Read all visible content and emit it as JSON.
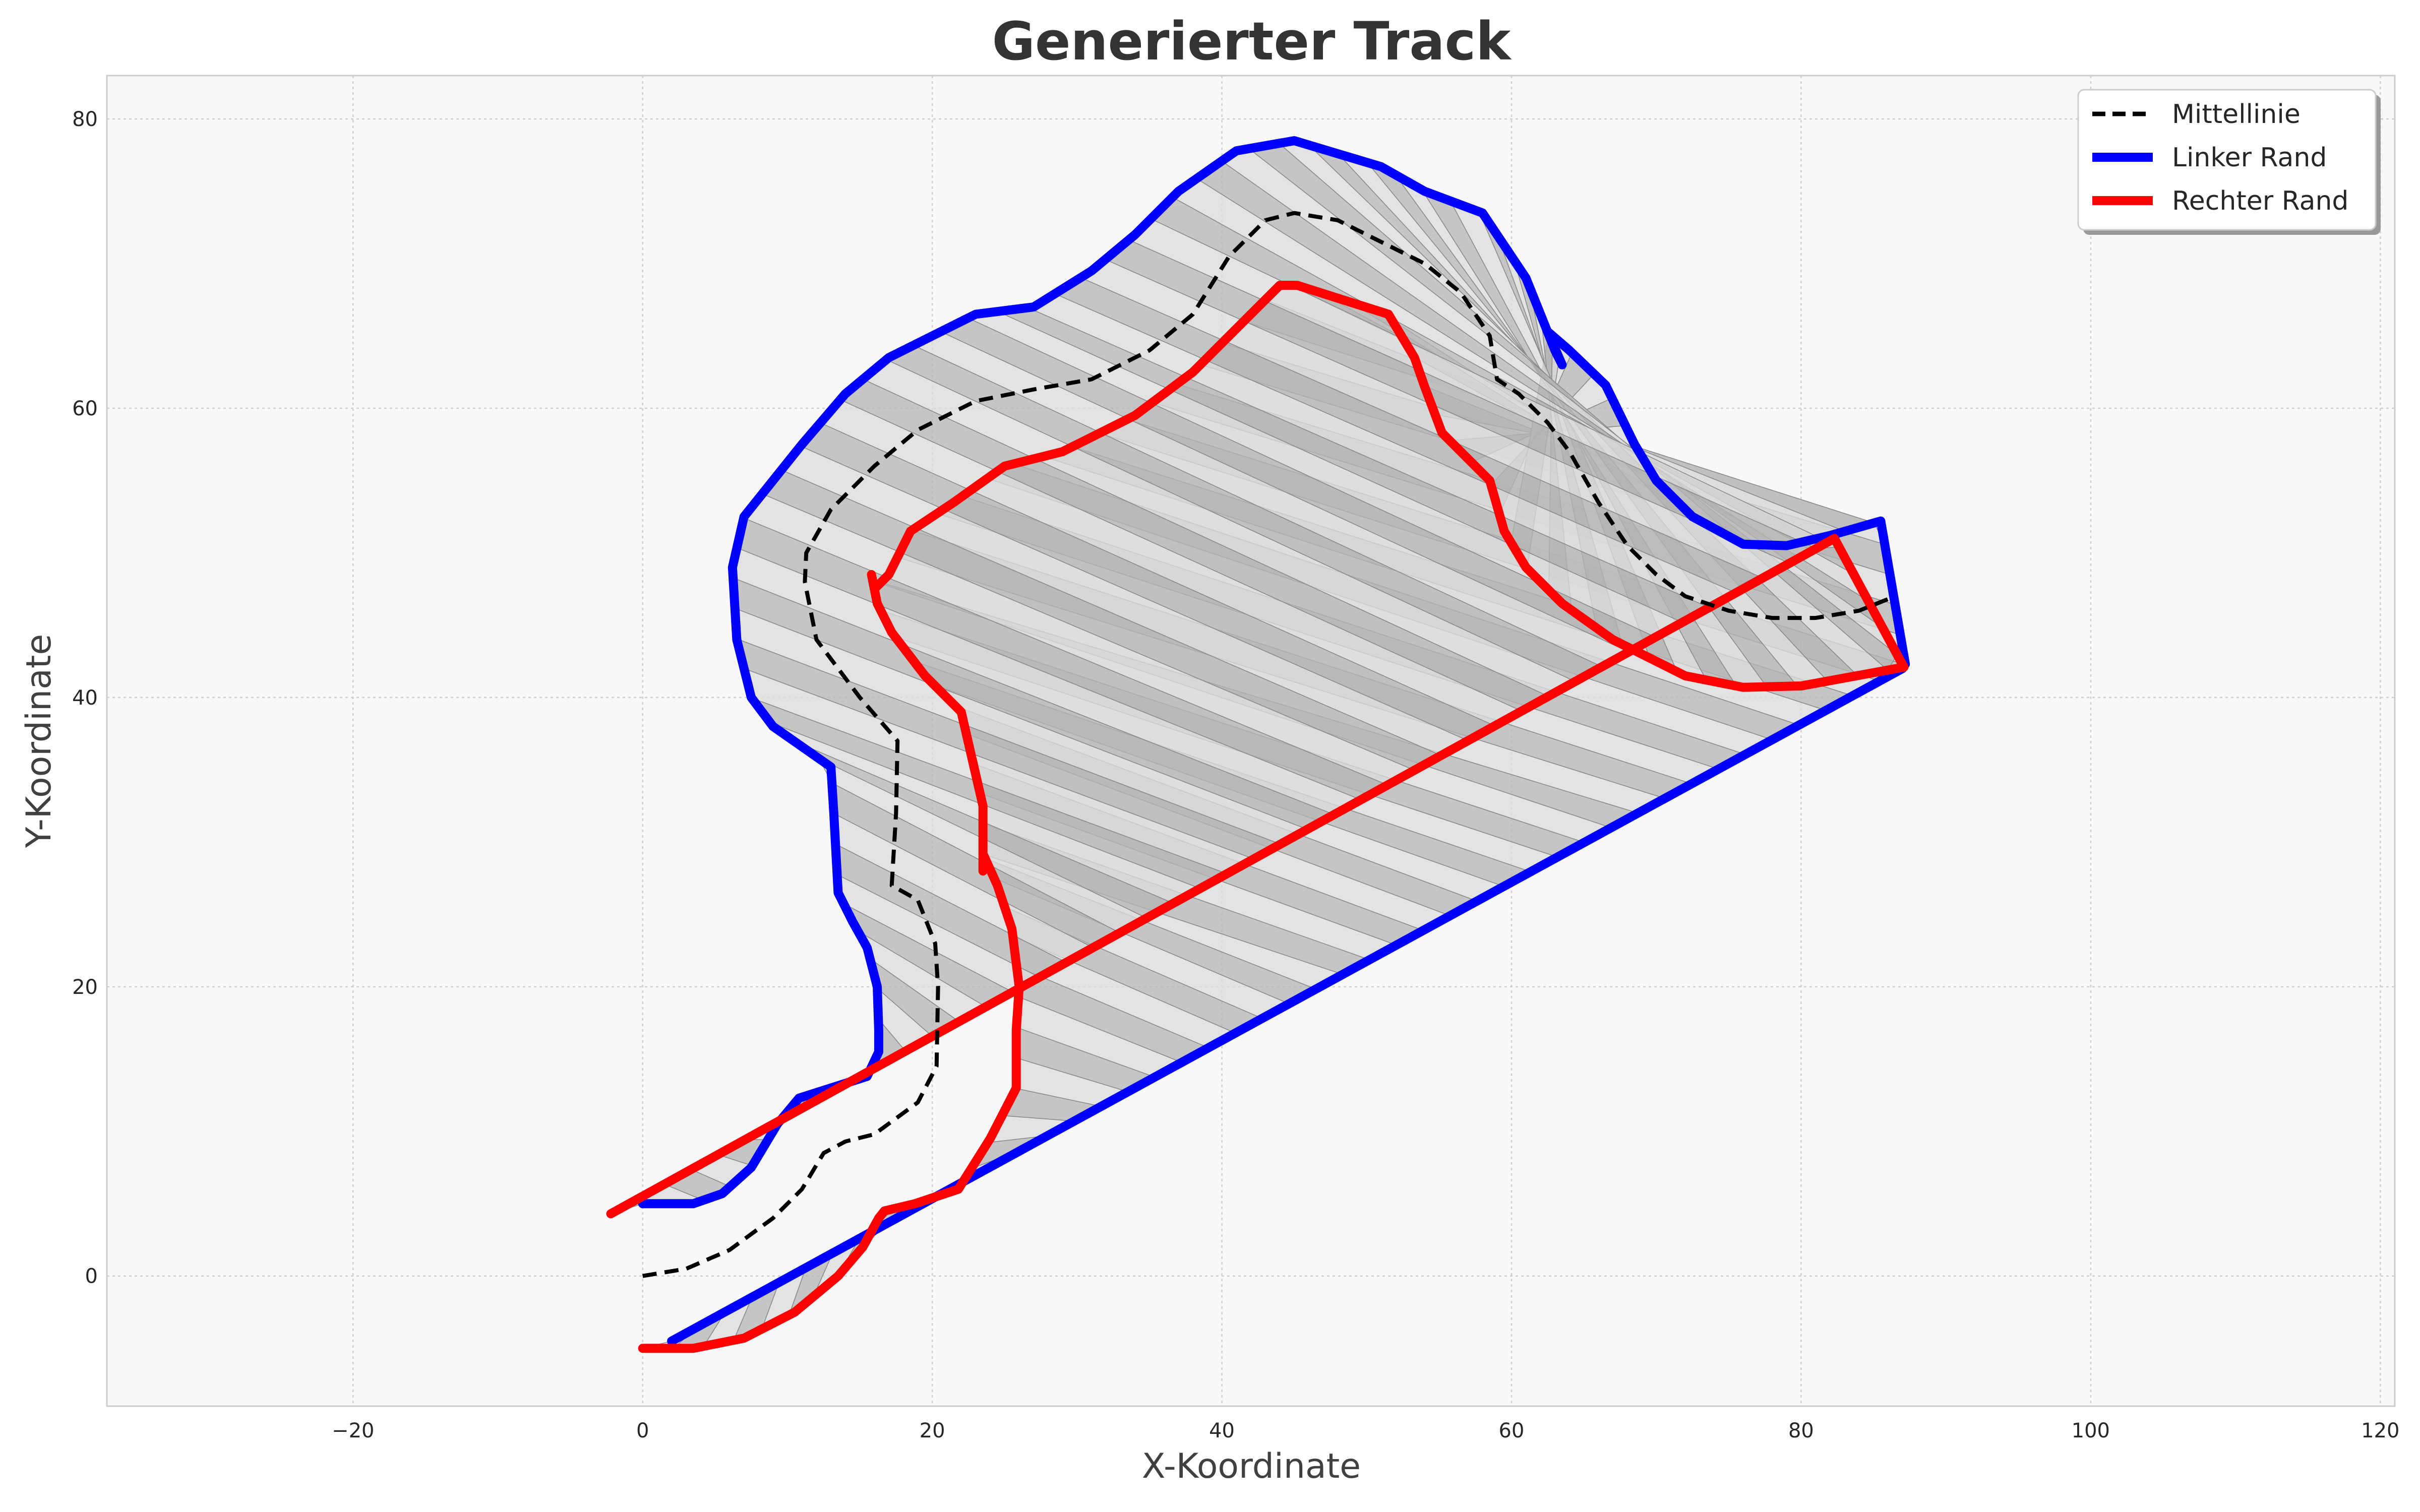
{
  "chart_data": {
    "type": "line",
    "title": "Generierter Track",
    "xlabel": "X-Koordinate",
    "ylabel": "Y-Koordinate",
    "xlim": [
      -37,
      121
    ],
    "ylim": [
      -9,
      83
    ],
    "xticks": [
      -20,
      0,
      20,
      40,
      60,
      80,
      100,
      120
    ],
    "yticks": [
      0,
      20,
      40,
      60,
      80
    ],
    "grid": true,
    "legend_position": "top-right",
    "colors": {
      "centerline": "#000000",
      "left_edge": "#0000ff",
      "right_edge": "#ff0000",
      "segment_light": "#dcdcdc",
      "segment_dark": "#b4b4b4",
      "plot_background": "#f8f8f8"
    },
    "series": [
      {
        "name": "Mittellinie",
        "style": "dashed",
        "x": [
          0,
          3,
          6,
          9,
          11,
          12.5,
          14,
          16,
          19,
          20.3,
          20.4,
          20.2,
          19,
          17.2,
          17.5,
          17.6,
          15,
          12,
          11.2,
          11.3,
          13,
          16,
          19,
          23,
          27,
          31,
          35,
          38,
          40.5,
          43,
          45,
          48,
          51,
          54,
          56.5,
          58.5,
          59,
          60.5,
          62.5,
          64,
          66,
          68,
          70,
          72,
          75,
          78,
          81,
          84,
          86.5
        ],
        "y": [
          0,
          0.5,
          1.8,
          4,
          6,
          8.5,
          9.3,
          9.8,
          12,
          14.5,
          20,
          23,
          26,
          27,
          32,
          37,
          40,
          44,
          48,
          50,
          53,
          56,
          58.5,
          60.5,
          61.3,
          62,
          64,
          66.5,
          70.5,
          73,
          73.5,
          73,
          71.5,
          70,
          68,
          65,
          62,
          61,
          59,
          57,
          53.5,
          50.5,
          48.5,
          47,
          46,
          45.5,
          45.5,
          46,
          47
        ]
      },
      {
        "name": "Linker Rand",
        "style": "solid",
        "x": [
          2,
          87,
          87.2,
          85.5,
          82,
          79,
          76,
          72.5,
          70,
          68.5,
          66.5,
          64,
          62.5,
          63.5,
          63,
          61,
          58,
          54,
          51,
          45,
          41,
          37,
          34,
          31,
          27,
          23,
          20,
          17,
          14,
          11,
          7,
          6.2,
          6.5,
          7.5,
          9,
          13,
          13.2,
          13.5,
          14.5,
          15.5,
          16.2,
          16.3,
          16.3,
          15.5,
          13,
          10.8,
          9.3,
          7.5,
          5.5,
          3.5,
          0
        ],
        "y": [
          -4.5,
          42,
          42.3,
          52.2,
          51.2,
          50.5,
          50.6,
          52.5,
          55,
          57.5,
          61.6,
          64,
          65.3,
          63,
          64,
          69,
          73.5,
          75,
          76.7,
          78.5,
          77.8,
          75,
          72,
          69.5,
          67,
          66.5,
          65,
          63.5,
          61,
          57.5,
          52.5,
          49,
          44,
          40,
          38,
          35.2,
          32,
          26.5,
          24.5,
          22.7,
          20,
          17,
          15.5,
          13.8,
          13,
          12.3,
          10.5,
          7.5,
          5.7,
          5,
          5
        ]
      },
      {
        "name": "Rechter Rand",
        "style": "solid",
        "x": [
          -2.2,
          82.3,
          87.1,
          80,
          76,
          72,
          67,
          63.5,
          61,
          59.5,
          58.5,
          55.2,
          54,
          53.3,
          51.5,
          45.2,
          44,
          41.5,
          38,
          34,
          29,
          25,
          21.5,
          18.5,
          17,
          16,
          15.8,
          16.2,
          17.2,
          19.5,
          22,
          23.5,
          23.5,
          23.5,
          24.5,
          25.5,
          26,
          25.8,
          25.8,
          24,
          21.8,
          18.8,
          16.7,
          16.3,
          15.2,
          13.5,
          10.5,
          7,
          3.5,
          0
        ],
        "y": [
          4.3,
          51,
          42.1,
          40.8,
          40.7,
          41.5,
          44,
          46.5,
          49,
          51.5,
          55,
          58.3,
          61.5,
          63.5,
          66.5,
          68.5,
          68.5,
          66,
          62.5,
          59.5,
          57,
          56,
          53.5,
          51.5,
          48.5,
          47.5,
          48.5,
          46.5,
          44.5,
          41.5,
          39,
          32.5,
          28,
          29.2,
          27,
          24,
          20,
          17,
          13,
          9.5,
          6,
          5,
          4.5,
          4,
          2,
          0,
          -2.5,
          -4.3,
          -5,
          -5
        ]
      }
    ]
  },
  "legend": {
    "items": [
      {
        "label": "Mittellinie"
      },
      {
        "label": "Linker Rand"
      },
      {
        "label": "Rechter Rand"
      }
    ]
  }
}
